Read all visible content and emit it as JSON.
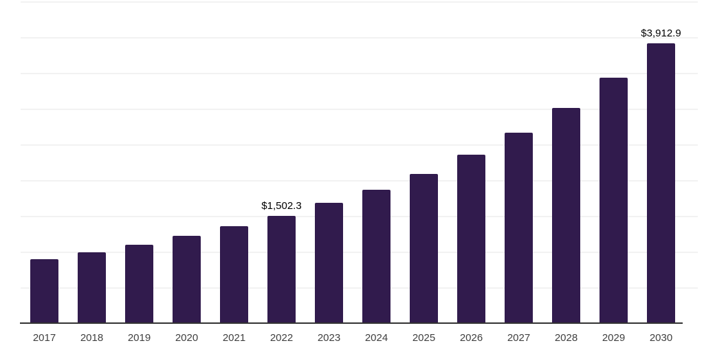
{
  "chart_data": {
    "type": "bar",
    "title": "",
    "xlabel": "",
    "ylabel": "",
    "categories": [
      "2017",
      "2018",
      "2019",
      "2020",
      "2021",
      "2022",
      "2023",
      "2024",
      "2025",
      "2026",
      "2027",
      "2028",
      "2029",
      "2030"
    ],
    "values": [
      894,
      990,
      1096,
      1221,
      1356,
      1502.3,
      1683,
      1865,
      2087,
      2356,
      2664,
      3010,
      3433,
      3912.9
    ],
    "data_labels": {
      "2022": "$1,502.3",
      "2030": "$3,912.9"
    },
    "ylim": [
      0,
      4500
    ],
    "grid_step": 500,
    "grid": "horizontal-only",
    "legend": "none",
    "y_tick_labels_visible": false,
    "colors": {
      "bar": "#311b4d",
      "gridline": "#f2f2f2",
      "axis": "#333333",
      "tick_label": "#404040",
      "data_label": "#000000",
      "background": "#ffffff"
    }
  }
}
